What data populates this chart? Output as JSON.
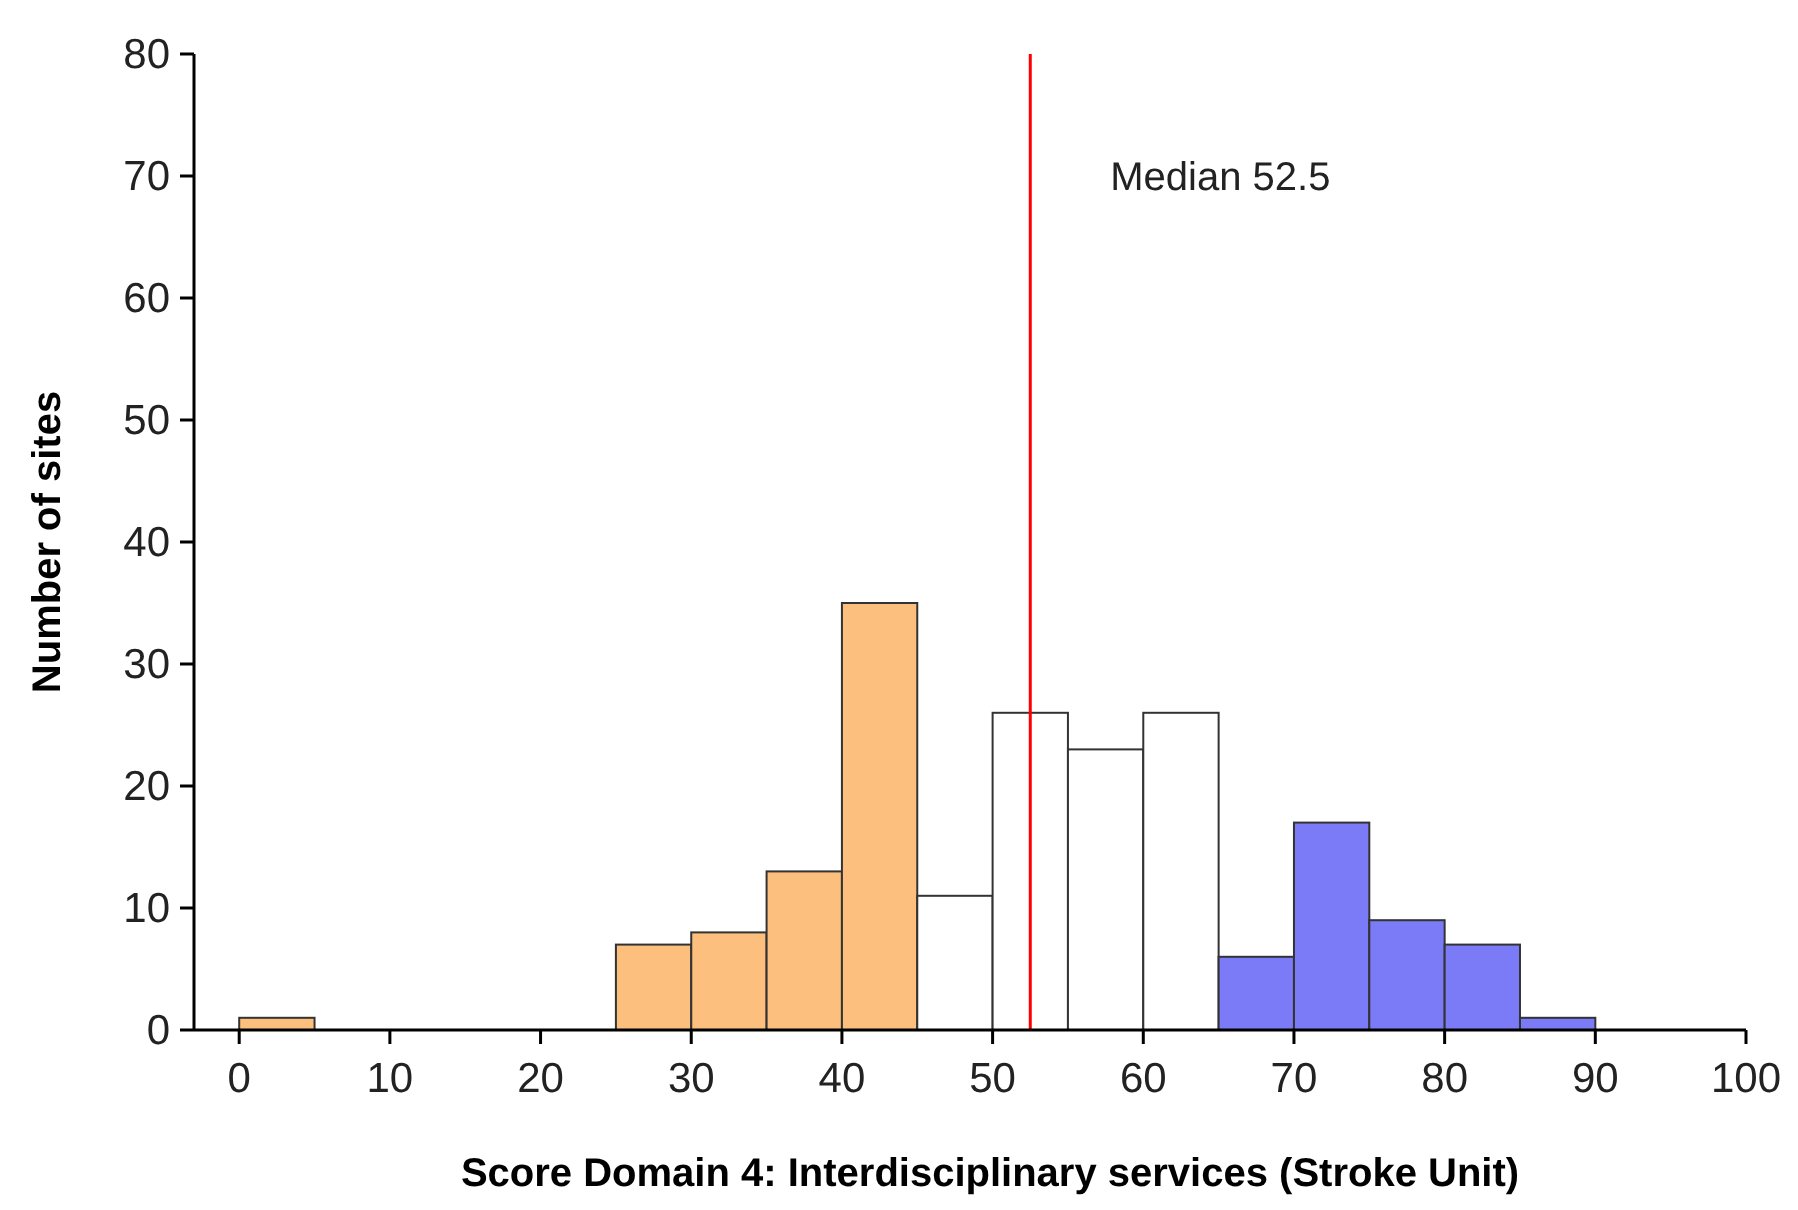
{
  "chart_data": {
    "type": "histogram",
    "xlabel": "Score Domain 4: Interdisciplinary services (Stroke Unit)",
    "ylabel": "Number of sites",
    "bins": [
      0,
      5,
      10,
      15,
      20,
      25,
      30,
      35,
      40,
      45,
      50,
      55,
      60,
      65,
      70,
      75,
      80,
      85,
      90
    ],
    "values": [
      1,
      0,
      0,
      0,
      0,
      7,
      8,
      13,
      35,
      11,
      26,
      23,
      26,
      6,
      17,
      9,
      7,
      1
    ],
    "colors": [
      "#fdbf7e",
      "#fdbf7e",
      "#fdbf7e",
      "#fdbf7e",
      "#fdbf7e",
      "#fdbf7e",
      "#fdbf7e",
      "#fdbf7e",
      "#fdbf7e",
      "#ffffff",
      "#ffffff",
      "#ffffff",
      "#ffffff",
      "#7b7bf7",
      "#7b7bf7",
      "#7b7bf7",
      "#7b7bf7",
      "#7b7bf7"
    ],
    "xlim": [
      -3,
      100
    ],
    "xticks": [
      0,
      10,
      20,
      30,
      40,
      50,
      60,
      70,
      80,
      90,
      100
    ],
    "ylim": [
      0,
      80
    ],
    "yticks": [
      0,
      10,
      20,
      30,
      40,
      50,
      60,
      70,
      80
    ],
    "ref_lines": [
      {
        "axis": "x",
        "value": 52.5,
        "label": "Median 52.5",
        "color": "#ff0000"
      }
    ],
    "grid": false
  }
}
